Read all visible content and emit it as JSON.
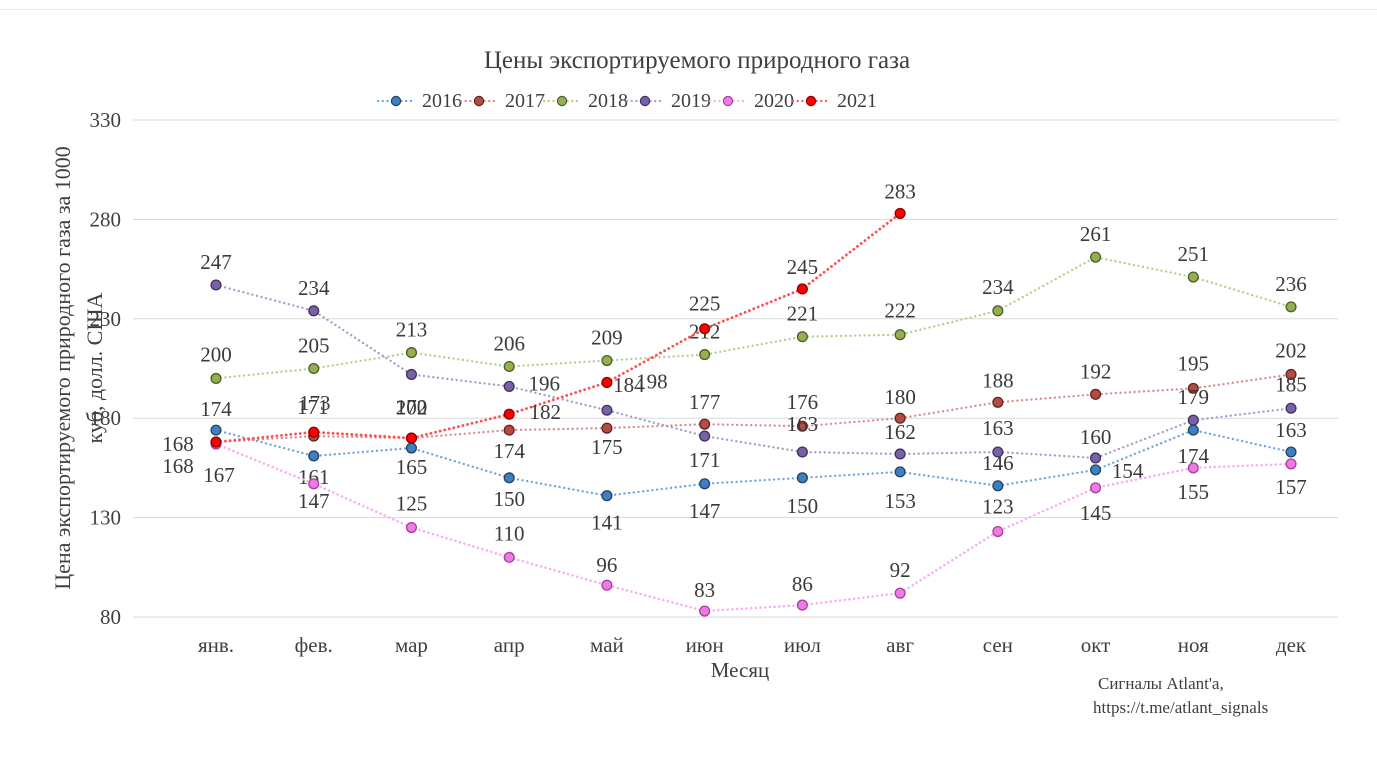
{
  "chart_data": {
    "type": "line",
    "title": "Цены экспортируемого природного газа",
    "xlabel": "Месяц",
    "ylabel": "Цена экспортируемого природного газа за 1000 куб, долл. США",
    "ylabel_lines": [
      "Цена экспортируемого природного газа за 1000",
      "куб, долл. США"
    ],
    "categories": [
      "янв.",
      "фев.",
      "мар",
      "апр",
      "май",
      "июн",
      "июл",
      "авг",
      "сен",
      "окт",
      "ноя",
      "дек"
    ],
    "y_ticks": [
      330,
      280,
      230,
      180,
      130,
      80
    ],
    "ylim": [
      80,
      330
    ],
    "grid": true,
    "line_style": "dotted",
    "legend_position": "top-center",
    "series": [
      {
        "name": "2016",
        "marker_color": "#3E7EC1",
        "marker_border": "#24435F",
        "line_color": "#6FA3DC",
        "values": [
          174,
          161,
          165,
          150,
          141,
          147,
          150,
          153,
          146,
          154,
          174,
          163
        ]
      },
      {
        "name": "2017",
        "marker_color": "#B64B45",
        "marker_border": "#5E2422",
        "line_color": "#D98C8A",
        "values": [
          168,
          171,
          170,
          174,
          175,
          177,
          176,
          180,
          188,
          192,
          195,
          202
        ]
      },
      {
        "name": "2018",
        "marker_color": "#94AF4F",
        "marker_border": "#4D5D27",
        "line_color": "#B7CD8C",
        "values": [
          200,
          205,
          213,
          206,
          209,
          212,
          221,
          222,
          234,
          261,
          251,
          236
        ]
      },
      {
        "name": "2019",
        "marker_color": "#7961A8",
        "marker_border": "#3D325B",
        "line_color": "#A79BC8",
        "values": [
          247,
          234,
          202,
          196,
          184,
          171,
          163,
          162,
          163,
          160,
          179,
          185
        ]
      },
      {
        "name": "2020",
        "marker_color": "#EC7BE4",
        "marker_border": "#A93F9F",
        "line_color": "#F8ACF1",
        "values": [
          167,
          147,
          125,
          110,
          96,
          83,
          86,
          92,
          123,
          145,
          155,
          157
        ]
      },
      {
        "name": "2021",
        "marker_color": "#FF0000",
        "marker_border": "#8B0000",
        "line_color": "#FF5050",
        "values": [
          168,
          173,
          170,
          182,
          198,
          225,
          245,
          283,
          null,
          null,
          null,
          null
        ]
      }
    ]
  },
  "footer": {
    "line1": "Сигналы Atlant'a,",
    "line2": "https://t.me/atlant_signals"
  },
  "colors": {
    "text": "#3F3F3F",
    "grid": "#D9D9D9",
    "background": "#FFFFFF",
    "top_separator": "#E9E9E9"
  }
}
